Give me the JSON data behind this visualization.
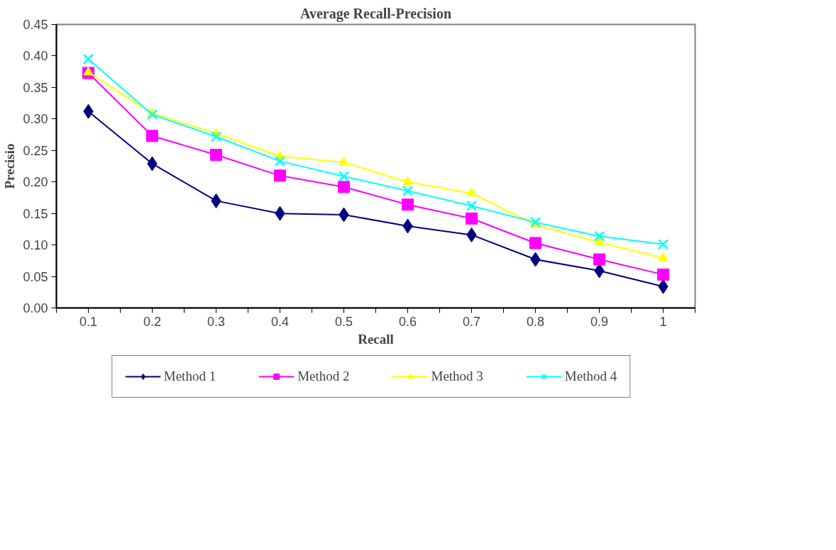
{
  "chart_data": {
    "type": "line",
    "title": "Average Recall-Precision",
    "xlabel": "Recall",
    "ylabel": "Precisio",
    "categories": [
      "0.1",
      "0.2",
      "0.3",
      "0.4",
      "0.5",
      "0.6",
      "0.7",
      "0.8",
      "0.9",
      "1"
    ],
    "ylim": [
      0,
      0.45
    ],
    "yticks": [
      {
        "value": 0,
        "label": "0.00"
      },
      {
        "value": 0.05,
        "label": "0.05"
      },
      {
        "value": 0.1,
        "label": "0.10"
      },
      {
        "value": 0.15,
        "label": "0.15"
      },
      {
        "value": 0.2,
        "label": "0.20"
      },
      {
        "value": 0.25,
        "label": "0.25"
      },
      {
        "value": 0.3,
        "label": "0.30"
      },
      {
        "value": 0.35,
        "label": "0.35"
      },
      {
        "value": 0.4,
        "label": "0.40"
      },
      {
        "value": 0.45,
        "label": "0.45"
      }
    ],
    "grid": false,
    "legend": "bottom",
    "line_style": "solid",
    "series": [
      {
        "name": "Method 1",
        "color": "#000080",
        "marker": "diamond",
        "values": [
          0.312,
          0.229,
          0.17,
          0.15,
          0.148,
          0.13,
          0.116,
          0.077,
          0.059,
          0.034
        ]
      },
      {
        "name": "Method 2",
        "color": "#ff00ff",
        "marker": "square",
        "values": [
          0.373,
          0.273,
          0.243,
          0.21,
          0.192,
          0.164,
          0.142,
          0.103,
          0.077,
          0.053
        ]
      },
      {
        "name": "Method 3",
        "color": "#ffff00",
        "marker": "triangle",
        "values": [
          0.374,
          0.309,
          0.277,
          0.241,
          0.231,
          0.2,
          0.182,
          0.132,
          0.104,
          0.079
        ]
      },
      {
        "name": "Method 4",
        "color": "#00ffff",
        "marker": "cross",
        "values": [
          0.395,
          0.307,
          0.272,
          0.233,
          0.209,
          0.186,
          0.162,
          0.136,
          0.114,
          0.101
        ]
      }
    ]
  }
}
